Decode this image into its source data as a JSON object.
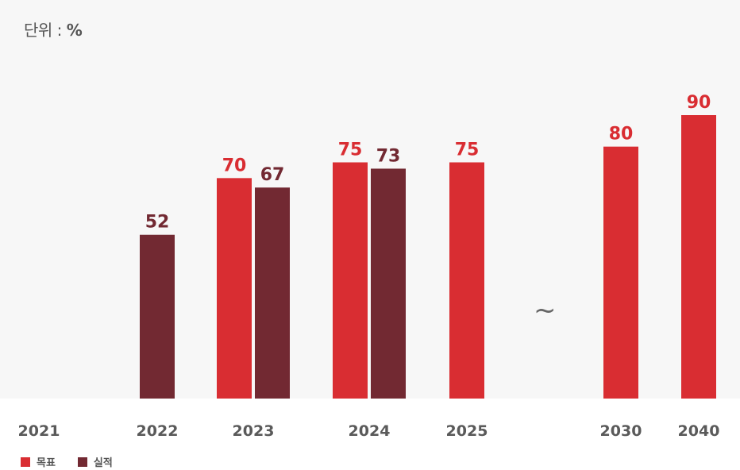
{
  "unit": {
    "prefix": "단위 :",
    "symbol": "%"
  },
  "break_symbol": "~",
  "colors": {
    "target": "#d92d32",
    "actual": "#722932",
    "year": "#5a5a5a"
  },
  "legend": [
    {
      "label": "목표",
      "color": "#d92d32"
    },
    {
      "label": "실적",
      "color": "#722932"
    }
  ],
  "chart_data": {
    "type": "bar",
    "categories": [
      "2021",
      "2022",
      "2023",
      "2024",
      "2025",
      "2030",
      "2040"
    ],
    "series": [
      {
        "name": "목표",
        "values": [
          null,
          null,
          70,
          75,
          75,
          80,
          90
        ]
      },
      {
        "name": "실적",
        "values": [
          null,
          52,
          67,
          73,
          null,
          null,
          null
        ]
      }
    ],
    "ylim": [
      0,
      90
    ],
    "grid": false,
    "legend_position": "bottom-left",
    "axis_break_between": [
      "2025",
      "2030"
    ]
  }
}
